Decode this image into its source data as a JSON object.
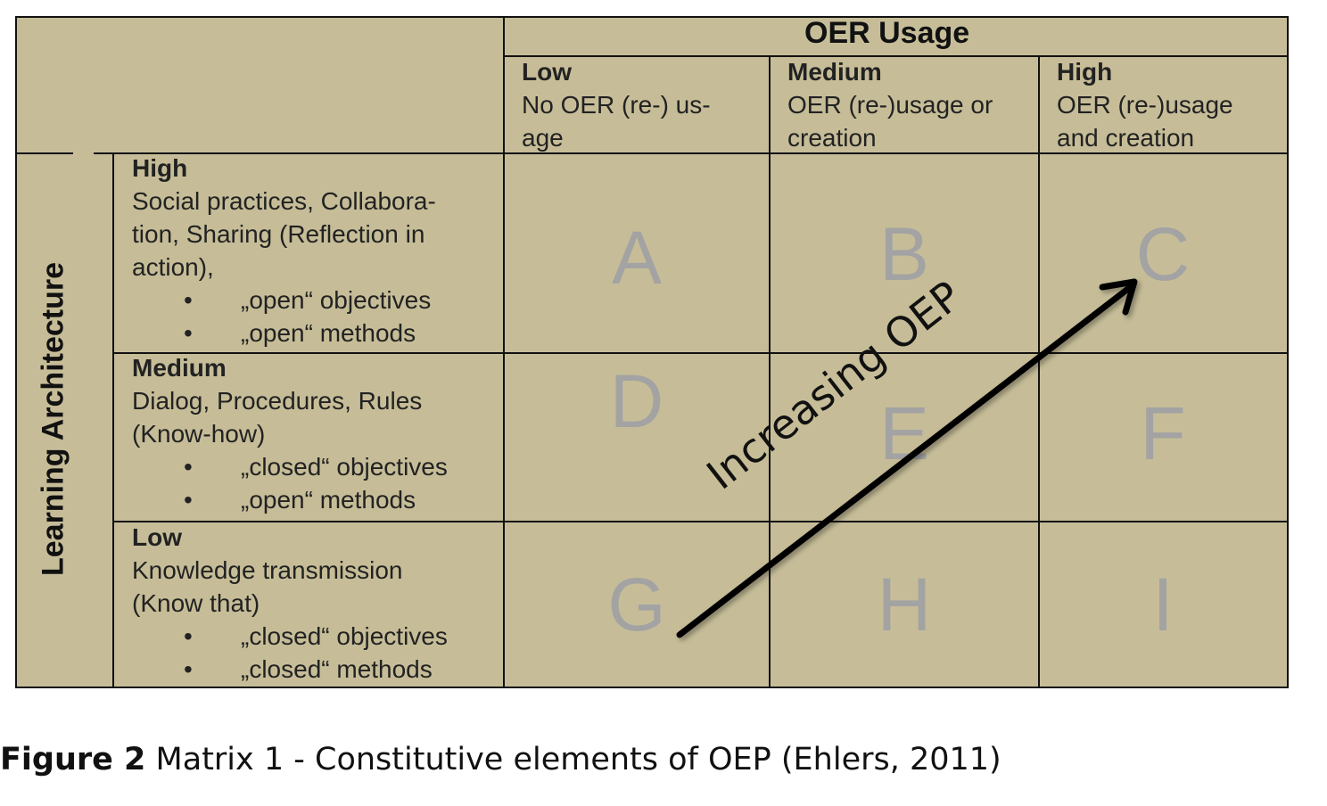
{
  "matrix": {
    "column_header": "OER Usage",
    "row_header": "Learning Architecture",
    "columns": [
      {
        "level": "Low",
        "lines": [
          "No OER (re-) us-",
          "age"
        ]
      },
      {
        "level": "Medium",
        "lines": [
          "OER (re-)usage or",
          "creation"
        ]
      },
      {
        "level": "High",
        "lines": [
          "OER (re-)usage",
          "and creation"
        ]
      }
    ],
    "rows": [
      {
        "level": "High",
        "lines": [
          "Social practices, Collabora-",
          "tion, Sharing (Reflection in",
          "action),"
        ],
        "bullets": [
          "„open“ objectives",
          "„open“ methods"
        ]
      },
      {
        "level": "Medium",
        "lines": [
          "Dialog, Procedures, Rules",
          "(Know-how)"
        ],
        "bullets": [
          "„closed“ objectives",
          "„open“ methods"
        ]
      },
      {
        "level": "Low",
        "lines": [
          "Knowledge transmission",
          "(Know that)"
        ],
        "bullets": [
          "„closed“ objectives",
          "„closed“ methods"
        ]
      }
    ],
    "cells": [
      "A",
      "B",
      "C",
      "D",
      "E",
      "F",
      "G",
      "H",
      "I"
    ],
    "arrow_label": "Increasing OEP",
    "colors": {
      "background": "#c6bd98",
      "cell_letter": "#a3a3a3",
      "lines": "#111111"
    }
  },
  "caption": {
    "label": "Figure 2",
    "text": " Matrix 1 - Constitutive elements of OEP (Ehlers, 2011)"
  }
}
